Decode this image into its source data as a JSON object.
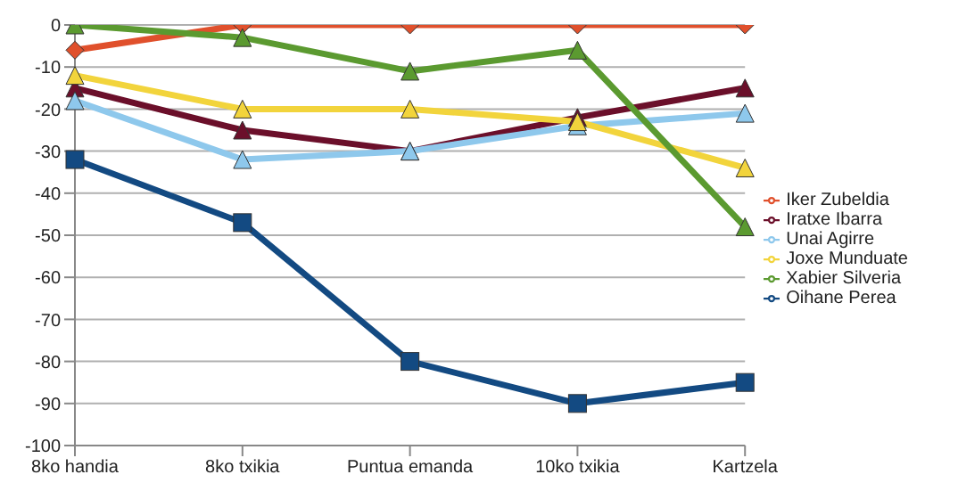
{
  "chart_data": {
    "type": "line",
    "categories": [
      "8ko handia",
      "8ko txikia",
      "Puntua emanda",
      "10ko txikia",
      "Kartzela"
    ],
    "series": [
      {
        "name": "Iker Zubeldia",
        "color": "#e0502c",
        "marker": "diamond",
        "values": [
          -6,
          0,
          0,
          0,
          0
        ]
      },
      {
        "name": "Iratxe Ibarra",
        "color": "#6b0f2a",
        "marker": "triangle",
        "values": [
          -15,
          -25,
          -30,
          -22,
          -15
        ]
      },
      {
        "name": "Unai Agirre",
        "color": "#8ec8ec",
        "marker": "triangle",
        "values": [
          -18,
          -32,
          -30,
          -24,
          -21
        ]
      },
      {
        "name": "Joxe Munduate",
        "color": "#f2d43c",
        "marker": "triangle",
        "values": [
          -12,
          -20,
          -20,
          -23,
          -34
        ]
      },
      {
        "name": "Xabier Silveria",
        "color": "#5b9a30",
        "marker": "triangle",
        "values": [
          0,
          -3,
          -11,
          -6,
          -48
        ]
      },
      {
        "name": "Oihane Perea",
        "color": "#134a82",
        "marker": "square",
        "values": [
          -32,
          -47,
          -80,
          -90,
          -85
        ]
      }
    ],
    "ylim": [
      -100,
      0
    ],
    "yticks": [
      -100,
      -90,
      -80,
      -70,
      -60,
      -50,
      -40,
      -30,
      -20,
      -10,
      0
    ],
    "grid": "y",
    "legend": "right"
  }
}
